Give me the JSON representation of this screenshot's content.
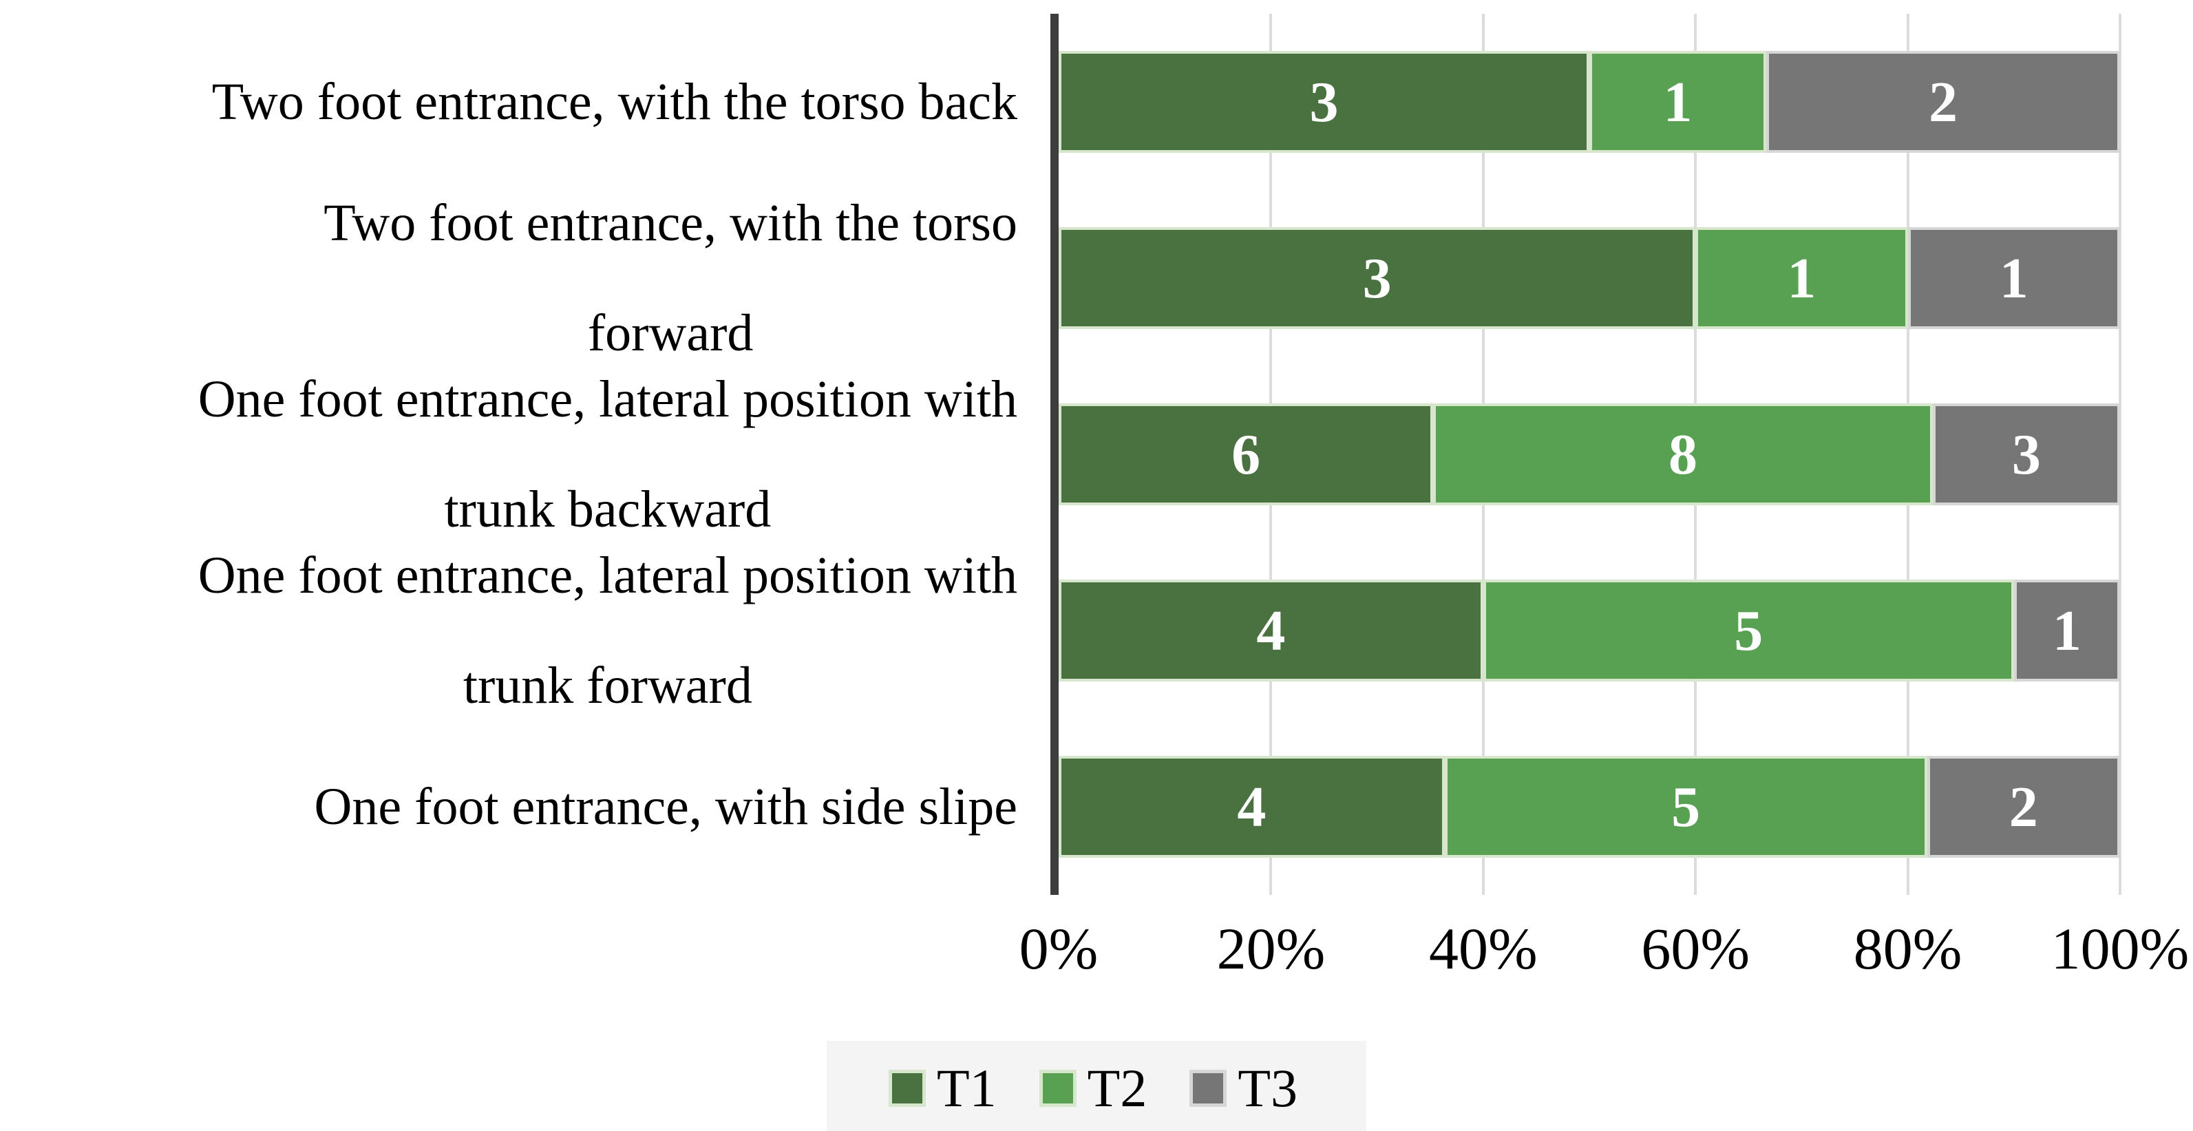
{
  "chart_data": {
    "type": "bar",
    "orientation": "horizontal",
    "stacked": true,
    "x_axis_unit": "percent_of_category_total",
    "xlim": [
      0,
      100
    ],
    "x_ticks": [
      "0%",
      "20%",
      "40%",
      "60%",
      "80%",
      "100%"
    ],
    "grid": "vertical_light_gray",
    "legend_position": "bottom",
    "categories": [
      "Two foot entrance, with the torso back",
      "Two foot entrance, with the torso\nforward",
      "One foot entrance, lateral position with\ntrunk backward",
      "One foot entrance, lateral position with\ntrunk forward",
      "One foot entrance, with side slipe"
    ],
    "series": [
      {
        "name": "T1",
        "color": "#4a7240",
        "border_color": "#d8e6cd",
        "values": [
          3,
          3,
          6,
          4,
          4
        ]
      },
      {
        "name": "T2",
        "color": "#58a052",
        "border_color": "#d8e6cd",
        "values": [
          1,
          1,
          8,
          5,
          5
        ]
      },
      {
        "name": "T3",
        "color": "#767676",
        "border_color": "#d6d6d6",
        "values": [
          2,
          1,
          3,
          1,
          2
        ]
      }
    ],
    "segment_value_labels_shown": true
  },
  "colors": {
    "axis_line": "#3d3d3d",
    "gridline": "#dcdcdc",
    "legend_background": "#f4f4f4",
    "bar_value_text": "#ffffff",
    "label_text": "#000000"
  }
}
